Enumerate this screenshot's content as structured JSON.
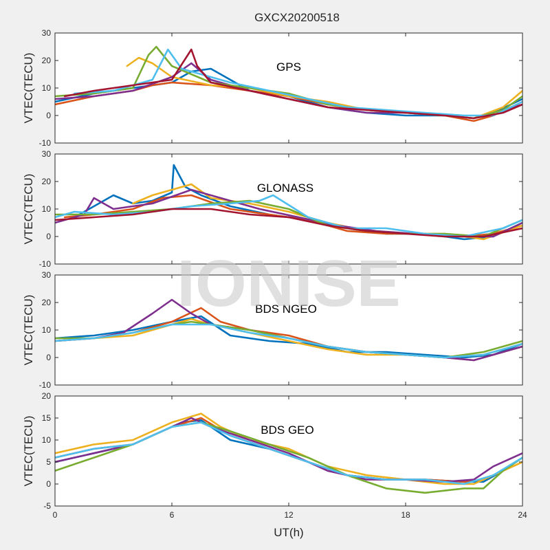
{
  "figure_title": "GXCX20200518",
  "watermark": "IONISE",
  "xlabel": "UT(h)",
  "colors": [
    "#0072BD",
    "#D95319",
    "#EDB120",
    "#7E2F8E",
    "#77AC30",
    "#4DBEEE",
    "#A2142F"
  ],
  "chart_data": [
    {
      "type": "line",
      "label": "GPS",
      "ylabel": "VTEC(TECU)",
      "xlim": [
        0,
        24
      ],
      "ylim": [
        -10,
        30
      ],
      "xticks": [
        0,
        6,
        12,
        18,
        24
      ],
      "yticks": [
        -10,
        0,
        10,
        20,
        30
      ],
      "grid": false,
      "series": [
        {
          "color": "#0072BD",
          "x": [
            0,
            2,
            4,
            6,
            7,
            8,
            9,
            10,
            12,
            14,
            16,
            18,
            20,
            21.5,
            22.5,
            24
          ],
          "y": [
            5,
            8,
            10,
            12,
            16,
            17,
            13,
            9,
            7,
            3,
            1,
            0,
            0,
            -1,
            1,
            6
          ]
        },
        {
          "color": "#D95319",
          "x": [
            0,
            2,
            4,
            5,
            6,
            8,
            10,
            12,
            14,
            16,
            18,
            20,
            21.5,
            22.5,
            24
          ],
          "y": [
            4,
            7,
            9,
            11,
            12,
            11,
            9,
            7,
            4,
            2,
            1,
            0,
            -2,
            0,
            5
          ]
        },
        {
          "color": "#EDB120",
          "x": [
            3.7,
            4.3,
            5,
            6,
            8,
            10,
            12,
            14,
            16,
            18,
            20,
            21.5,
            23,
            24
          ],
          "y": [
            18,
            21,
            19,
            14,
            11,
            10,
            7,
            5,
            2,
            1,
            0,
            -1,
            3,
            9
          ]
        },
        {
          "color": "#7E2F8E",
          "x": [
            0,
            2,
            4,
            6,
            7,
            8,
            10,
            12,
            14,
            16,
            18,
            20,
            21.5,
            23,
            24
          ],
          "y": [
            6,
            7,
            9,
            14,
            19,
            13,
            9,
            6,
            3,
            1,
            1,
            0,
            -1,
            2,
            4
          ]
        },
        {
          "color": "#77AC30",
          "x": [
            0,
            2,
            4,
            4.8,
            5.2,
            6,
            8,
            10,
            12,
            14,
            16,
            18,
            20,
            21.5,
            23,
            24
          ],
          "y": [
            7,
            8,
            10,
            22,
            25,
            18,
            12,
            10,
            8,
            4,
            2,
            1,
            0,
            -1,
            2,
            7
          ]
        },
        {
          "color": "#4DBEEE",
          "x": [
            1,
            3,
            5,
            5.8,
            6.5,
            7.5,
            9,
            11,
            13,
            15,
            17,
            19,
            21,
            22.5,
            24
          ],
          "y": [
            8,
            9,
            13,
            24,
            17,
            15,
            12,
            9,
            6,
            3,
            2,
            1,
            0,
            0,
            5
          ]
        },
        {
          "color": "#A2142F",
          "x": [
            0.5,
            2,
            4,
            6,
            7,
            7.3,
            8,
            10,
            12,
            14,
            16,
            18,
            20,
            21.5,
            23,
            24
          ],
          "y": [
            7,
            9,
            11,
            13,
            24,
            18,
            12,
            9,
            6,
            3,
            2,
            1,
            0,
            -1,
            1,
            4
          ]
        }
      ]
    },
    {
      "type": "line",
      "label": "GLONASS",
      "ylabel": "VTEC(TECU)",
      "xlim": [
        0,
        24
      ],
      "ylim": [
        -10,
        30
      ],
      "xticks": [
        0,
        6,
        12,
        18,
        24
      ],
      "yticks": [
        -10,
        0,
        10,
        20,
        30
      ],
      "grid": false,
      "series": [
        {
          "color": "#0072BD",
          "x": [
            1,
            2,
            3,
            4,
            5,
            6,
            6.1,
            6.7,
            7.5,
            9,
            11,
            13,
            15,
            17,
            19,
            21,
            22.5,
            24
          ],
          "y": [
            7,
            11,
            15,
            12,
            13,
            16,
            26,
            18,
            15,
            11,
            8,
            6,
            3,
            1,
            1,
            -1,
            0,
            5
          ]
        },
        {
          "color": "#D95319",
          "x": [
            0.5,
            2,
            4,
            5.5,
            7,
            9,
            11,
            13,
            15,
            17,
            19,
            21,
            22.5,
            24
          ],
          "y": [
            7,
            8,
            10,
            14,
            15,
            10,
            8,
            6,
            2,
            1,
            1,
            0,
            1,
            4
          ]
        },
        {
          "color": "#EDB120",
          "x": [
            4,
            5,
            6,
            7,
            8,
            10,
            12,
            14,
            16,
            18,
            20,
            22,
            24
          ],
          "y": [
            12,
            15,
            17,
            19,
            14,
            12,
            9,
            5,
            2,
            1,
            1,
            -1,
            4
          ]
        },
        {
          "color": "#7E2F8E",
          "x": [
            0,
            1.5,
            2,
            3,
            5,
            7,
            8.5,
            10.5,
            12.5,
            14.5,
            16.5,
            18.5,
            20.5,
            22.5,
            24
          ],
          "y": [
            5,
            8,
            14,
            10,
            12,
            17,
            14,
            10,
            7,
            4,
            2,
            1,
            0,
            0,
            5
          ]
        },
        {
          "color": "#77AC30",
          "x": [
            0,
            2,
            4,
            6,
            8,
            10,
            12,
            14,
            16,
            18,
            20,
            22,
            24
          ],
          "y": [
            8,
            8,
            9,
            10,
            12,
            13,
            10,
            4,
            2,
            1,
            1,
            0,
            6
          ]
        },
        {
          "color": "#4DBEEE",
          "x": [
            0,
            1,
            3,
            5,
            7,
            9,
            10.5,
            11.2,
            13,
            15,
            17,
            19,
            21,
            23,
            24
          ],
          "y": [
            7,
            9,
            8,
            9,
            11,
            12,
            13,
            15,
            7,
            3,
            3,
            1,
            0,
            3,
            6
          ]
        },
        {
          "color": "#A2142F",
          "x": [
            0,
            2,
            4,
            6,
            8,
            10,
            12,
            14,
            16,
            18,
            20,
            22,
            24
          ],
          "y": [
            6,
            7,
            8,
            10,
            10,
            8,
            7,
            4,
            2,
            1,
            0,
            0,
            3
          ]
        }
      ]
    },
    {
      "type": "line",
      "label": "BDS NGEO",
      "ylabel": "VTEC(TECU)",
      "xlim": [
        0,
        24
      ],
      "ylim": [
        -10,
        30
      ],
      "xticks": [
        0,
        6,
        12,
        18,
        24
      ],
      "yticks": [
        -10,
        0,
        10,
        20,
        30
      ],
      "grid": false,
      "series": [
        {
          "color": "#0072BD",
          "x": [
            0,
            2,
            4,
            6,
            7.5,
            9,
            11,
            13,
            15,
            17,
            19,
            21,
            22.5,
            24
          ],
          "y": [
            7,
            8,
            10,
            13,
            15,
            8,
            6,
            5,
            2,
            2,
            1,
            0,
            1,
            5
          ]
        },
        {
          "color": "#D95319",
          "x": [
            0,
            2,
            4,
            6,
            7.5,
            8.5,
            10,
            12,
            14,
            16,
            18,
            20,
            21.5,
            23,
            24
          ],
          "y": [
            6,
            7,
            9,
            13,
            18,
            13,
            10,
            8,
            4,
            2,
            1,
            0,
            -1,
            2,
            4
          ]
        },
        {
          "color": "#EDB120",
          "x": [
            0,
            2,
            4,
            6,
            7,
            8,
            10,
            12,
            14,
            16,
            18,
            20,
            22,
            24
          ],
          "y": [
            6,
            7,
            8,
            12,
            14,
            12,
            9,
            6,
            3,
            1,
            1,
            0,
            1,
            5
          ]
        },
        {
          "color": "#7E2F8E",
          "x": [
            0,
            2,
            3.5,
            5,
            6,
            7,
            8,
            10,
            12,
            14,
            16,
            18,
            20,
            21.5,
            23,
            24
          ],
          "y": [
            6,
            7,
            9,
            16,
            21,
            16,
            12,
            10,
            7,
            4,
            2,
            1,
            0,
            -1,
            2,
            4
          ]
        },
        {
          "color": "#77AC30",
          "x": [
            0,
            2,
            4,
            6,
            7,
            8,
            10,
            12,
            14,
            16,
            18,
            20,
            22,
            24
          ],
          "y": [
            7,
            7,
            9,
            12,
            13,
            12,
            10,
            7,
            4,
            2,
            1,
            0,
            2,
            6
          ]
        },
        {
          "color": "#4DBEEE",
          "x": [
            0,
            2,
            4,
            6,
            8,
            10,
            12,
            14,
            16,
            18,
            20,
            22,
            24
          ],
          "y": [
            6,
            7,
            9,
            12,
            12,
            9,
            7,
            4,
            2,
            1,
            0,
            1,
            5
          ]
        }
      ]
    },
    {
      "type": "line",
      "label": "BDS GEO",
      "ylabel": "VTEC(TECU)",
      "xlim": [
        0,
        24
      ],
      "ylim": [
        -5,
        20
      ],
      "xticks": [
        0,
        6,
        12,
        18,
        24
      ],
      "yticks": [
        -5,
        0,
        5,
        10,
        15,
        20
      ],
      "grid": false,
      "series": [
        {
          "color": "#0072BD",
          "x": [
            0,
            2,
            4,
            5.5,
            6.5,
            7.5,
            9,
            11,
            13,
            15,
            17,
            19,
            21,
            22,
            23,
            24
          ],
          "y": [
            5,
            7,
            9,
            12,
            14,
            14.5,
            10,
            8,
            5,
            2,
            1,
            1,
            0.5,
            0.5,
            3,
            6
          ]
        },
        {
          "color": "#D95319",
          "x": [
            0,
            2,
            4,
            6,
            7.5,
            9,
            11,
            13,
            15,
            17,
            19,
            21,
            22,
            23,
            24
          ],
          "y": [
            6,
            8,
            9,
            13,
            15,
            11,
            8,
            5,
            2,
            1,
            1,
            0.5,
            1,
            3,
            5
          ]
        },
        {
          "color": "#EDB120",
          "x": [
            0,
            2,
            4,
            6,
            7.5,
            8.5,
            10,
            12,
            14,
            16,
            18,
            20,
            21.5,
            22.5,
            24
          ],
          "y": [
            7,
            9,
            10,
            14,
            16,
            13,
            10,
            8,
            4,
            2,
            1,
            0,
            0,
            2,
            5
          ]
        },
        {
          "color": "#7E2F8E",
          "x": [
            0,
            2,
            4,
            6,
            7,
            8,
            10,
            12,
            14,
            16,
            18,
            20,
            21.5,
            22.5,
            24
          ],
          "y": [
            5,
            7,
            9,
            13,
            15,
            13,
            10,
            7,
            3,
            1,
            1,
            0.5,
            1,
            4,
            7
          ]
        },
        {
          "color": "#77AC30",
          "x": [
            0,
            2,
            4,
            6,
            7.5,
            9,
            11,
            13,
            15,
            17,
            19,
            21,
            22,
            23,
            24
          ],
          "y": [
            3,
            6,
            9,
            13,
            14,
            12,
            9,
            6,
            2,
            -1,
            -2,
            -1,
            -1,
            3,
            6
          ]
        },
        {
          "color": "#4DBEEE",
          "x": [
            0,
            2,
            4,
            6,
            7.5,
            9,
            11,
            13,
            15,
            17,
            19,
            21,
            22.5,
            24
          ],
          "y": [
            6,
            8,
            9,
            13,
            14,
            11,
            8,
            5,
            2,
            1,
            1,
            0,
            2,
            6
          ]
        }
      ]
    }
  ]
}
